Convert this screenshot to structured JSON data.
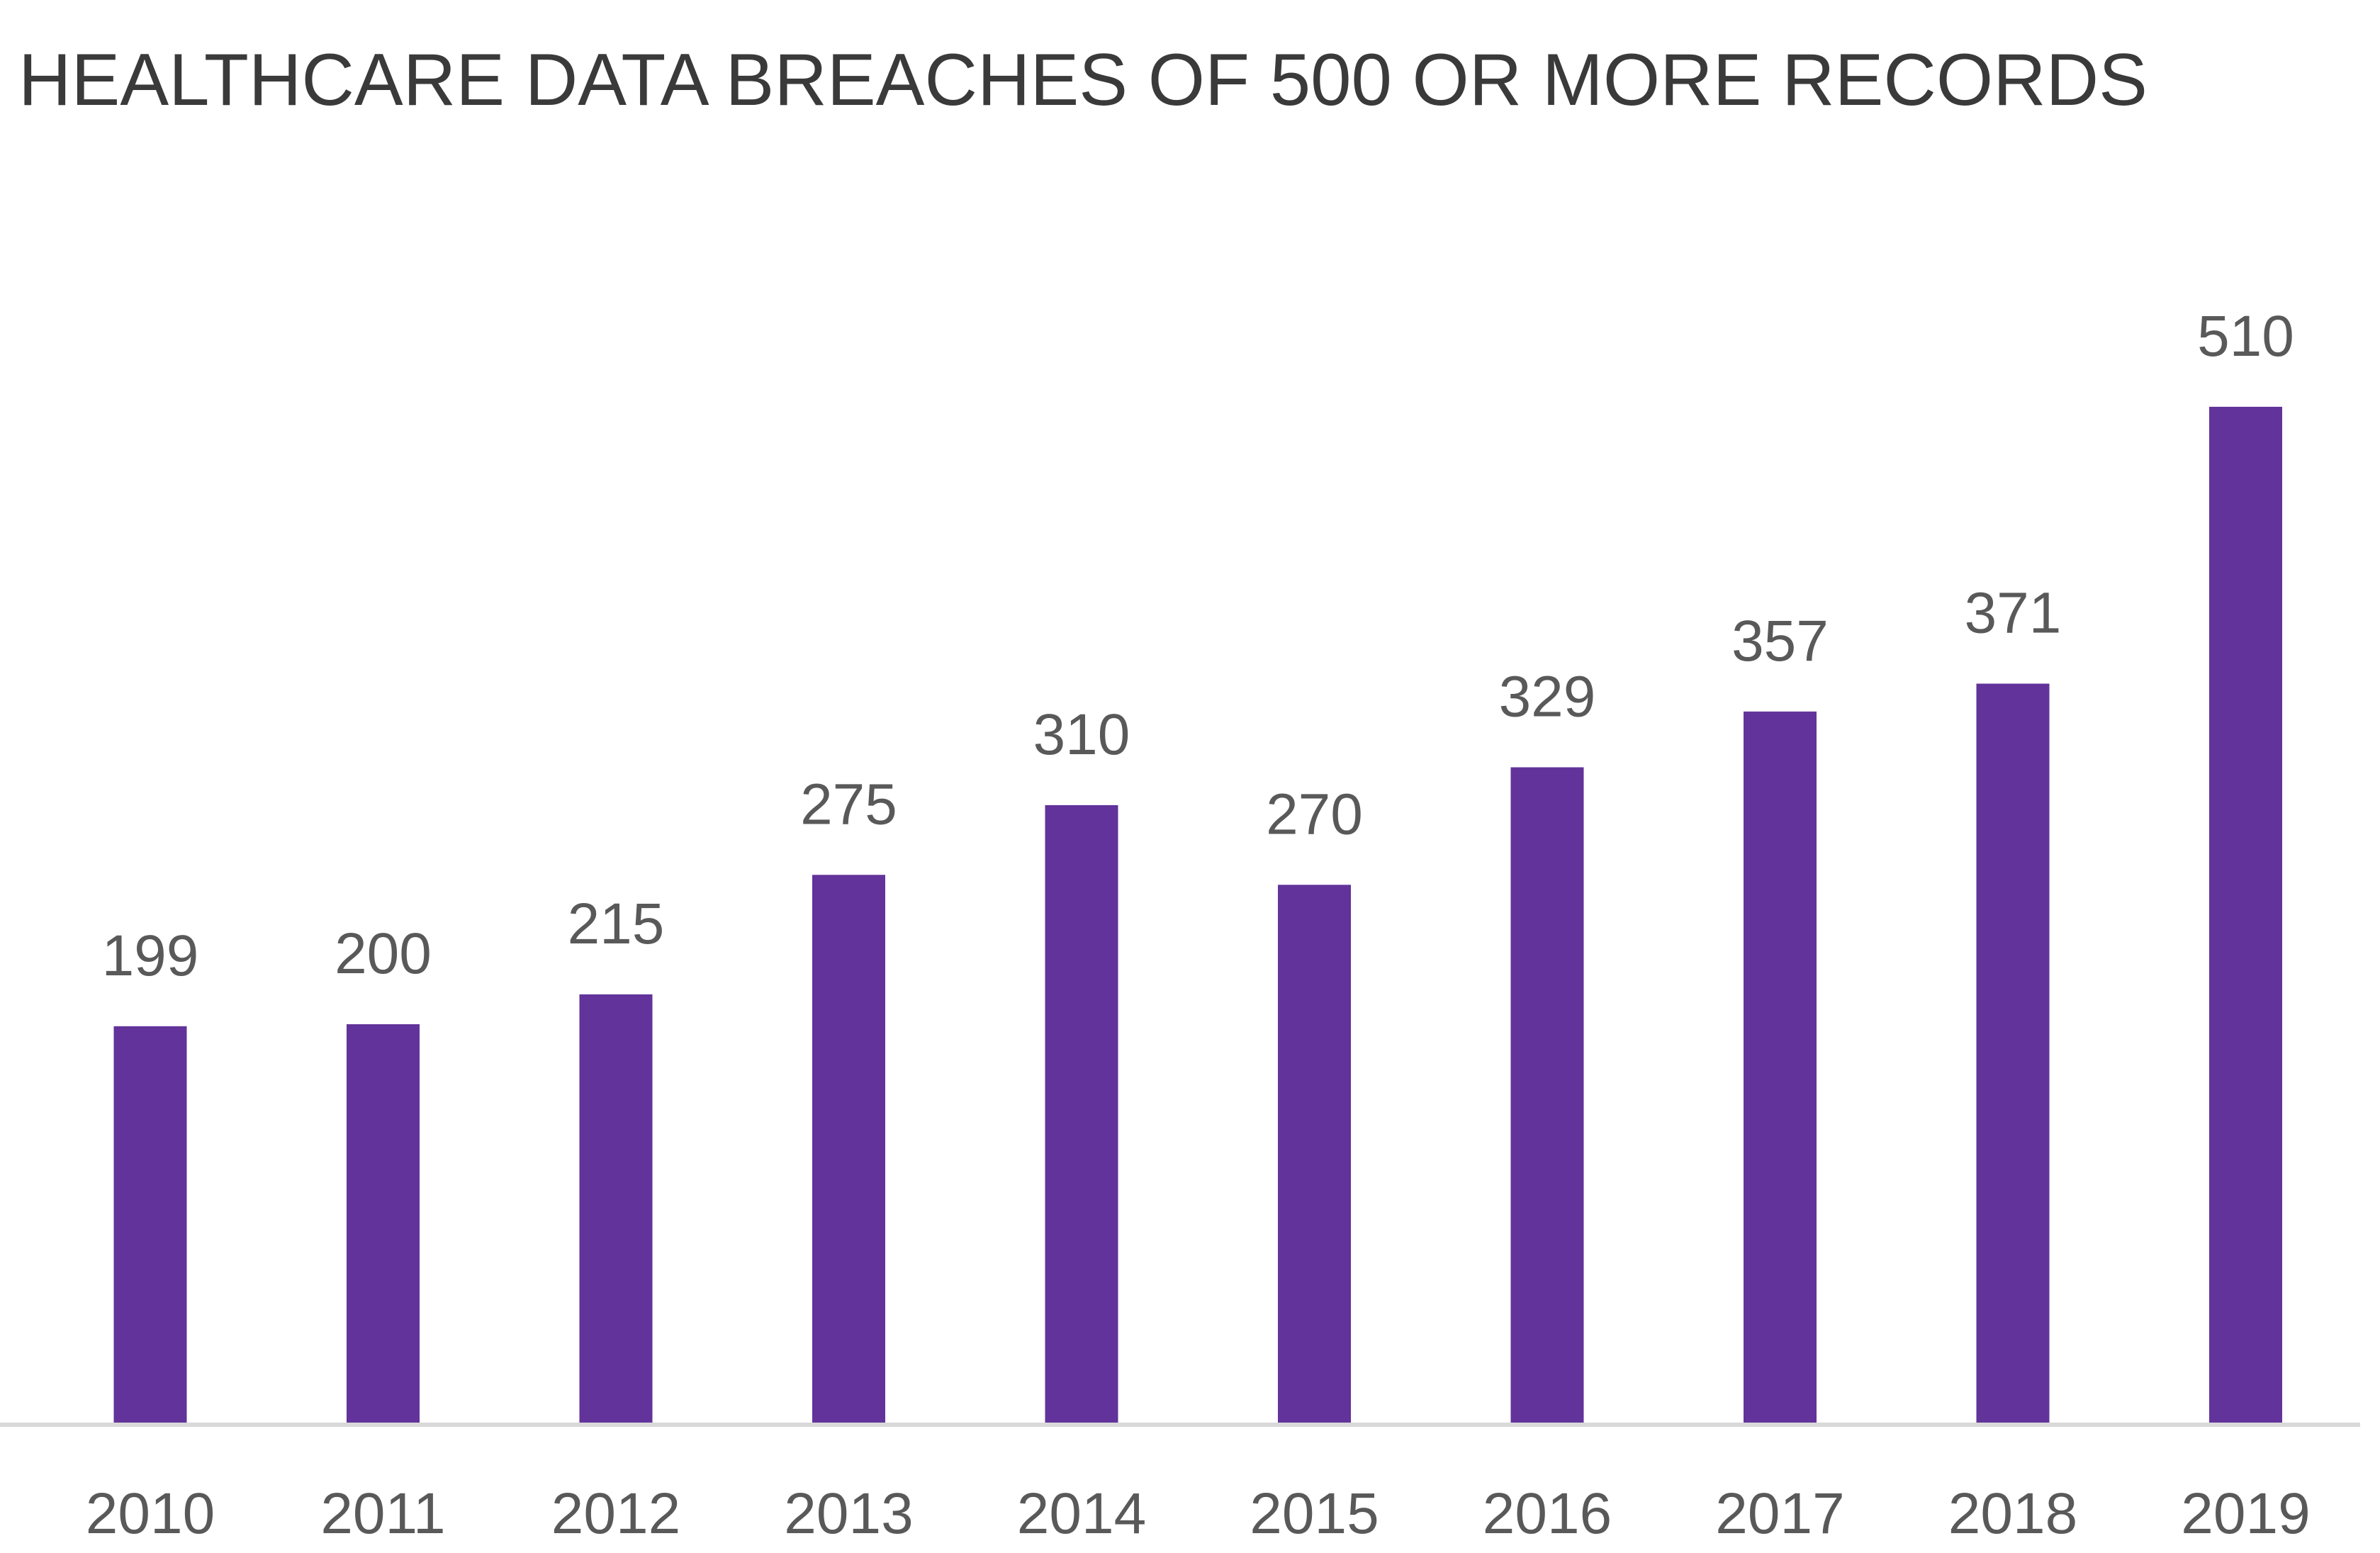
{
  "chart_data": {
    "type": "bar",
    "title": "HEALTHCARE DATA BREACHES OF 500 OR MORE RECORDS",
    "xlabel": "",
    "ylabel": "",
    "categories": [
      "2010",
      "2011",
      "2012",
      "2013",
      "2014",
      "2015",
      "2016",
      "2017",
      "2018",
      "2019"
    ],
    "values": [
      199,
      200,
      215,
      275,
      310,
      270,
      329,
      357,
      371,
      510
    ],
    "data_labels": [
      "199",
      "200",
      "215",
      "275",
      "310",
      "270",
      "329",
      "357",
      "371",
      "510"
    ],
    "ylim": [
      0,
      510
    ],
    "grid": false,
    "legend": "none",
    "colors": {
      "bar": "#62339A",
      "axis": "#D9D9D9",
      "text": "#595959",
      "title": "#3A3A3A"
    }
  }
}
